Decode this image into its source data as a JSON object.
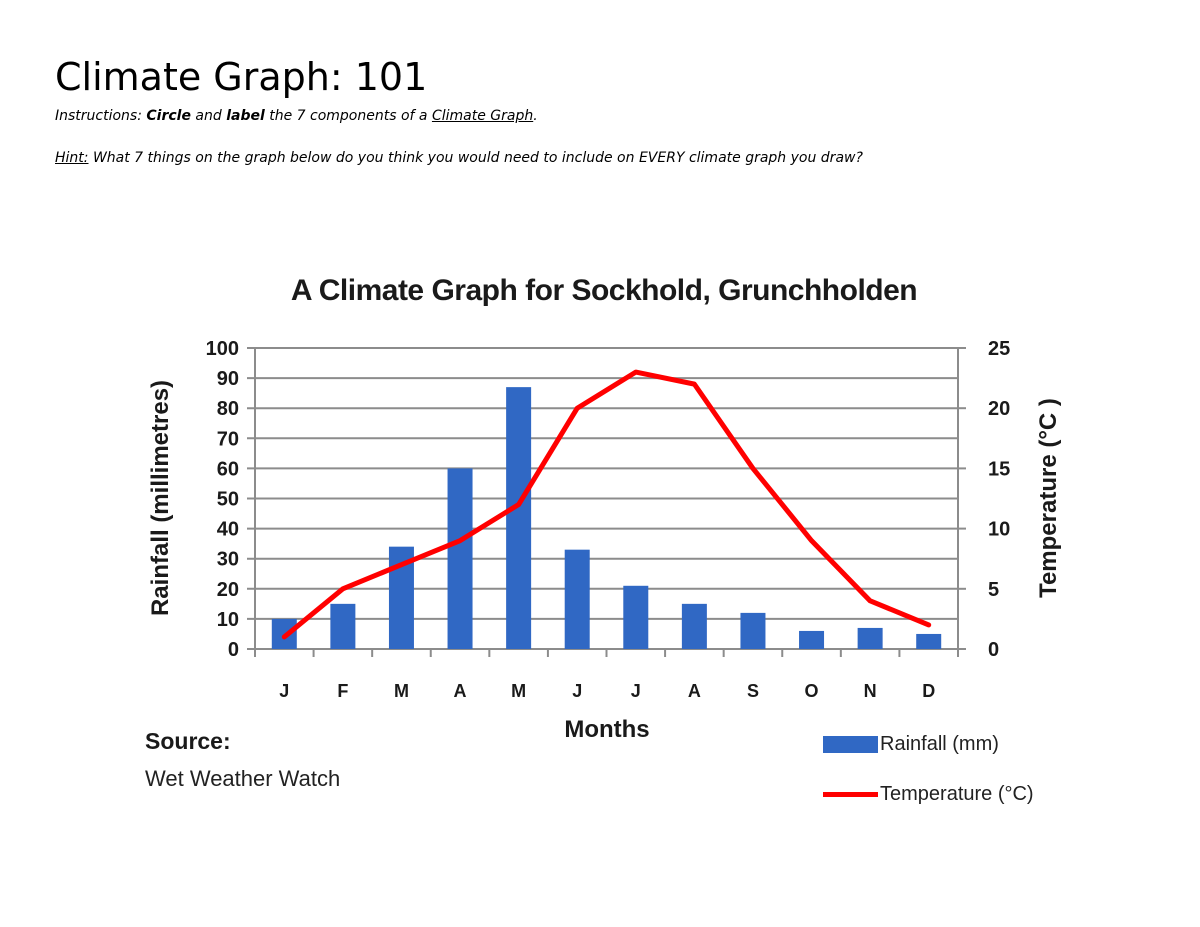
{
  "document": {
    "title": "Climate Graph: 101",
    "instructions": {
      "prefix": "Instructions: ",
      "circle": "Circle",
      "and": " and ",
      "label": "label",
      "middle": " the 7 components of a ",
      "link": "Climate Graph",
      "suffix": "."
    },
    "hint": {
      "label": "Hint:",
      "text": " What 7 things on the graph below do you think you would need to include on EVERY climate graph you draw?"
    }
  },
  "source": {
    "label": "Source:",
    "value": "Wet Weather Watch"
  },
  "colors": {
    "bar": "#3068c4",
    "line": "#ff0000",
    "grid": "#8c8c8c",
    "text": "#1a1a1a"
  },
  "chart_data": {
    "type": "bar+line",
    "title": "A Climate Graph for Sockhold, Grunchholden",
    "xlabel": "Months",
    "ylabel": "Rainfall (millimetres)",
    "y2label": "Temperature (°C )",
    "categories": [
      "J",
      "F",
      "M",
      "A",
      "M",
      "J",
      "J",
      "A",
      "S",
      "O",
      "N",
      "D"
    ],
    "ylim": [
      0,
      100
    ],
    "yticks": [
      0,
      10,
      20,
      30,
      40,
      50,
      60,
      70,
      80,
      90,
      100
    ],
    "y2lim": [
      0,
      25
    ],
    "y2ticks": [
      0,
      5,
      10,
      15,
      20,
      25
    ],
    "grid": true,
    "legend_position": "bottom-right",
    "series": [
      {
        "name": "Rainfall (mm)",
        "type": "bar",
        "axis": "left",
        "color": "#3068c4",
        "values": [
          10,
          15,
          34,
          60,
          87,
          33,
          21,
          15,
          12,
          6,
          7,
          5
        ]
      },
      {
        "name": "Temperature (°C)",
        "type": "line",
        "axis": "right",
        "color": "#ff0000",
        "values": [
          1,
          5,
          7,
          9,
          12,
          20,
          23,
          22,
          15,
          9,
          4,
          2
        ]
      }
    ]
  }
}
